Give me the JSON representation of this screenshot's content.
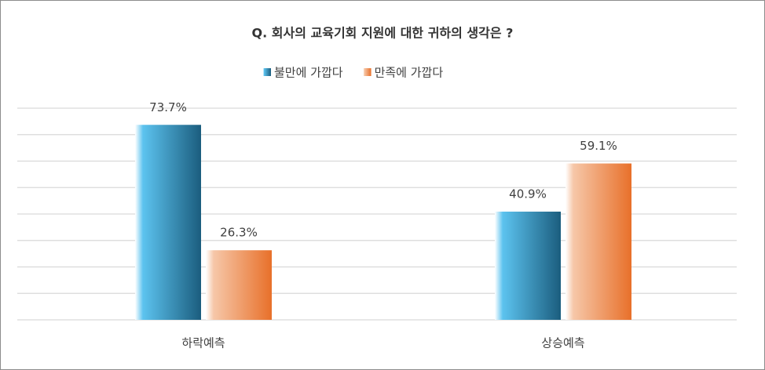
{
  "chart_data": {
    "type": "bar",
    "title": "Q. 회사의 교육기회 지원에 대한 귀하의 생각은 ?",
    "categories": [
      "하락예측",
      "상승예측"
    ],
    "series": [
      {
        "name": "불만에 가깝다",
        "color": "#1b5d7e",
        "values": [
          73.7,
          40.9
        ],
        "value_labels": [
          "73.7%",
          "40.9%"
        ]
      },
      {
        "name": "만족에 가깝다",
        "color": "#e8702a",
        "values": [
          26.3,
          59.1
        ],
        "value_labels": [
          "26.3%",
          "59.1%"
        ]
      }
    ],
    "ylim": [
      0,
      80
    ],
    "yticks": [
      0,
      10,
      20,
      30,
      40,
      50,
      60,
      70,
      80
    ],
    "grid": true,
    "legend": "top"
  }
}
